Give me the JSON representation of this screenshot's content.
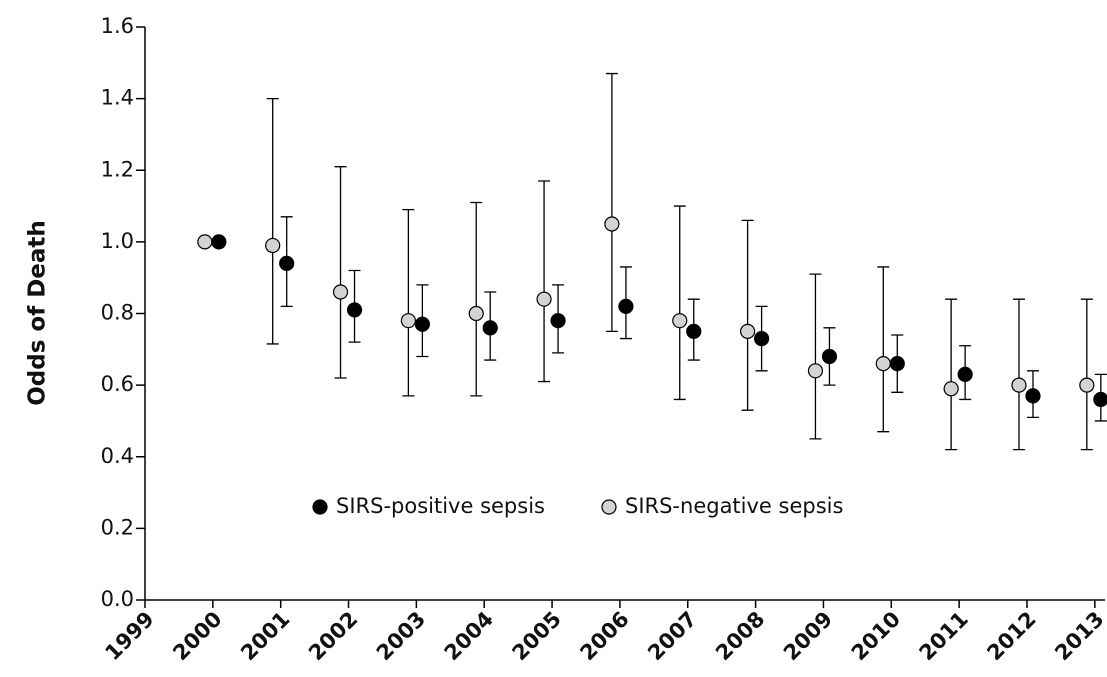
{
  "chart_data": {
    "type": "errorbar",
    "y_label": "Odds of Death",
    "x": [
      2000,
      2001,
      2002,
      2003,
      2004,
      2005,
      2006,
      2007,
      2008,
      2009,
      2010,
      2011,
      2012,
      2013
    ],
    "series": [
      {
        "name": "SIRS-positive sepsis",
        "color": "#000000",
        "values": [
          1.0,
          0.94,
          0.81,
          0.77,
          0.76,
          0.78,
          0.82,
          0.75,
          0.73,
          0.68,
          0.66,
          0.63,
          0.57,
          0.56
        ],
        "ci_low": [
          null,
          0.82,
          0.72,
          0.68,
          0.67,
          0.69,
          0.73,
          0.67,
          0.64,
          0.6,
          0.58,
          0.56,
          0.51,
          0.5
        ],
        "ci_high": [
          null,
          1.07,
          0.92,
          0.88,
          0.86,
          0.88,
          0.93,
          0.84,
          0.82,
          0.76,
          0.74,
          0.71,
          0.64,
          0.63
        ]
      },
      {
        "name": "SIRS-negative sepsis",
        "color": "#d3d3d3",
        "values": [
          1.0,
          0.99,
          0.86,
          0.78,
          0.8,
          0.84,
          1.05,
          0.78,
          0.75,
          0.64,
          0.66,
          0.59,
          0.6,
          0.6
        ],
        "ci_low": [
          null,
          0.715,
          0.62,
          0.57,
          0.57,
          0.61,
          0.75,
          0.56,
          0.53,
          0.45,
          0.47,
          0.42,
          0.42,
          0.42
        ],
        "ci_high": [
          null,
          1.4,
          1.21,
          1.09,
          1.11,
          1.17,
          1.47,
          1.1,
          1.06,
          0.91,
          0.93,
          0.84,
          0.84,
          0.84
        ]
      }
    ],
    "xlim": [
      1999,
      2013.15
    ],
    "xticks": [
      1999,
      2000,
      2001,
      2002,
      2003,
      2004,
      2005,
      2006,
      2007,
      2008,
      2009,
      2010,
      2011,
      2012,
      2013
    ],
    "ylim": [
      0,
      1.6
    ],
    "yticks": [
      {
        "value": 0,
        "label": "0.0"
      },
      0.2,
      0.4,
      0.6,
      0.8,
      {
        "value": 1,
        "label": "1.0"
      },
      1.2,
      1.4,
      1.6
    ],
    "legend": "bottom-center"
  }
}
